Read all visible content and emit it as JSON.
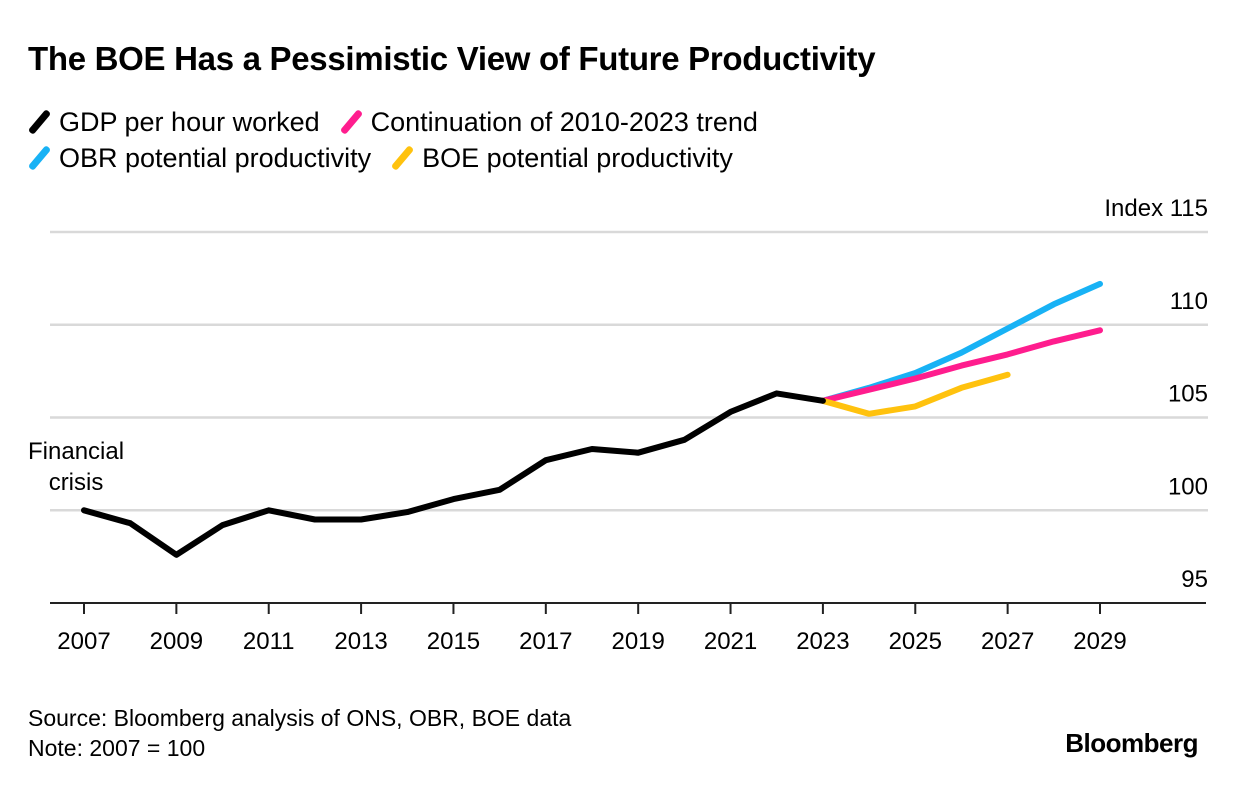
{
  "chart_data": {
    "type": "line",
    "title": "The BOE Has a Pessimistic View of Future Productivity",
    "xlabel": "",
    "ylabel": "Index",
    "y_unit_label": "Index 115",
    "xlim": [
      2006.6,
      2031.3
    ],
    "ylim": [
      95,
      115
    ],
    "yticks": [
      95,
      100,
      105,
      110,
      115
    ],
    "ytick_labels": [
      "95",
      "100",
      "105",
      "110",
      "Index 115"
    ],
    "xticks": [
      2007,
      2009,
      2011,
      2013,
      2015,
      2017,
      2019,
      2021,
      2023,
      2025,
      2027,
      2029
    ],
    "xtick_labels": [
      "2007",
      "2009",
      "2011",
      "2013",
      "2015",
      "2017",
      "2019",
      "2021",
      "2023",
      "2025",
      "2027",
      "2029"
    ],
    "grid": true,
    "legend_position": "top-left",
    "series": [
      {
        "name": "GDP per hour worked",
        "color": "#000000",
        "x": [
          2007,
          2008,
          2009,
          2010,
          2011,
          2012,
          2013,
          2014,
          2015,
          2016,
          2017,
          2018,
          2019,
          2020,
          2021,
          2022,
          2023
        ],
        "values": [
          100.0,
          99.3,
          97.6,
          99.2,
          100.0,
          99.5,
          99.5,
          99.9,
          100.6,
          101.1,
          102.7,
          103.3,
          103.1,
          103.8,
          105.3,
          106.3,
          105.9
        ]
      },
      {
        "name": "Continuation of 2010-2023 trend",
        "color": "#ff1d8e",
        "x": [
          2023,
          2024,
          2025,
          2026,
          2027,
          2028,
          2029
        ],
        "values": [
          105.9,
          106.5,
          107.1,
          107.8,
          108.4,
          109.1,
          109.7
        ]
      },
      {
        "name": "OBR potential productivity",
        "color": "#18b2f5",
        "x": [
          2023,
          2024,
          2025,
          2026,
          2027,
          2028,
          2029
        ],
        "values": [
          105.9,
          106.6,
          107.4,
          108.5,
          109.8,
          111.1,
          112.2
        ]
      },
      {
        "name": "BOE potential productivity",
        "color": "#ffc20e",
        "x": [
          2023,
          2024,
          2025,
          2026,
          2027
        ],
        "values": [
          105.9,
          105.2,
          105.6,
          106.6,
          107.3
        ]
      }
    ],
    "annotations": [
      {
        "text_lines": [
          "Financial",
          "crisis"
        ],
        "x": 2007,
        "y": 100
      }
    ]
  },
  "legend": {
    "items": [
      {
        "label": "GDP per hour worked",
        "color": "#000000"
      },
      {
        "label": "Continuation of 2010-2023 trend",
        "color": "#ff1d8e"
      },
      {
        "label": "OBR potential productivity",
        "color": "#18b2f5"
      },
      {
        "label": "BOE potential productivity",
        "color": "#ffc20e"
      }
    ]
  },
  "annotation": {
    "line1": "Financial",
    "line2": "crisis"
  },
  "footer": {
    "source": "Source: Bloomberg analysis of ONS, OBR, BOE data",
    "note": "Note: 2007 = 100",
    "brand": "Bloomberg"
  }
}
